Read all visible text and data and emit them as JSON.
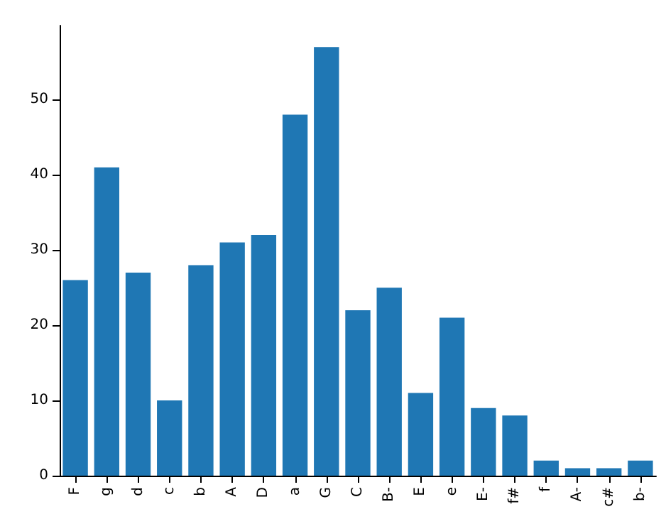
{
  "chart_data": {
    "type": "bar",
    "categories": [
      "F",
      "g",
      "d",
      "c",
      "b",
      "A",
      "D",
      "a",
      "G",
      "C",
      "B-",
      "E",
      "e",
      "E-",
      "f#",
      "f",
      "A-",
      "c#",
      "b-"
    ],
    "values": [
      26,
      41,
      27,
      10,
      28,
      31,
      32,
      48,
      57,
      22,
      25,
      11,
      21,
      9,
      8,
      2,
      1,
      1,
      2
    ],
    "color": "#1f77b4",
    "ylim": [
      0,
      59.85
    ],
    "yticks": [
      0,
      10,
      20,
      30,
      40,
      50
    ],
    "grid": false
  }
}
